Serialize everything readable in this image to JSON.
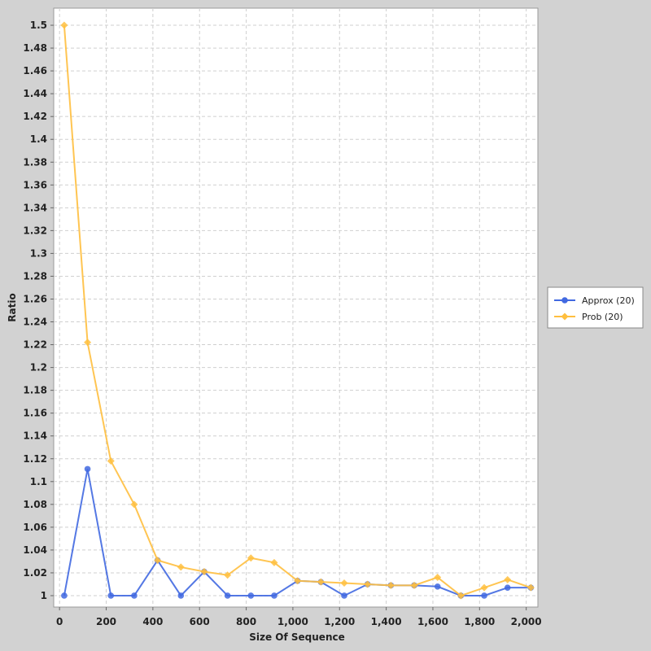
{
  "chart_data": {
    "type": "line",
    "xlabel": "Size Of Sequence",
    "ylabel": "Ratio",
    "xlim": [
      -25,
      2050
    ],
    "ylim": [
      0.99,
      1.515
    ],
    "x_ticks": [
      0,
      200,
      400,
      600,
      800,
      1000,
      1200,
      1400,
      1600,
      1800,
      2000
    ],
    "x_tick_labels": [
      "0",
      "200",
      "400",
      "600",
      "800",
      "1,000",
      "1,200",
      "1,400",
      "1,600",
      "1,800",
      "2,000"
    ],
    "y_ticks": [
      1,
      1.02,
      1.04,
      1.06,
      1.08,
      1.1,
      1.12,
      1.14,
      1.16,
      1.18,
      1.2,
      1.22,
      1.24,
      1.26,
      1.28,
      1.3,
      1.32,
      1.34,
      1.36,
      1.38,
      1.4,
      1.42,
      1.44,
      1.46,
      1.48,
      1.5
    ],
    "y_tick_labels": [
      "1",
      "1.02",
      "1.04",
      "1.06",
      "1.08",
      "1.1",
      "1.12",
      "1.14",
      "1.16",
      "1.18",
      "1.2",
      "1.22",
      "1.24",
      "1.26",
      "1.28",
      "1.3",
      "1.32",
      "1.34",
      "1.36",
      "1.38",
      "1.4",
      "1.42",
      "1.44",
      "1.46",
      "1.48",
      "1.5"
    ],
    "grid": true,
    "legend_position": "right",
    "x": [
      20,
      120,
      220,
      320,
      420,
      520,
      620,
      720,
      820,
      920,
      1020,
      1120,
      1220,
      1320,
      1420,
      1520,
      1620,
      1720,
      1820,
      1920,
      2020
    ],
    "series": [
      {
        "name": "Approx (20)",
        "color": "#4169e1",
        "marker": "circle",
        "values": [
          1.0,
          1.111,
          1.0,
          1.0,
          1.031,
          1.0,
          1.021,
          1.0,
          1.0,
          1.0,
          1.013,
          1.012,
          1.0,
          1.01,
          1.009,
          1.009,
          1.008,
          1.0,
          1.0,
          1.007,
          1.007
        ]
      },
      {
        "name": "Prob (20)",
        "color": "#ffbf3f",
        "marker": "diamond",
        "values": [
          1.5,
          1.222,
          1.118,
          1.08,
          1.031,
          1.025,
          1.021,
          1.018,
          1.033,
          1.029,
          1.013,
          1.012,
          1.011,
          1.01,
          1.009,
          1.009,
          1.016,
          1.0,
          1.007,
          1.014,
          1.007
        ]
      }
    ]
  }
}
